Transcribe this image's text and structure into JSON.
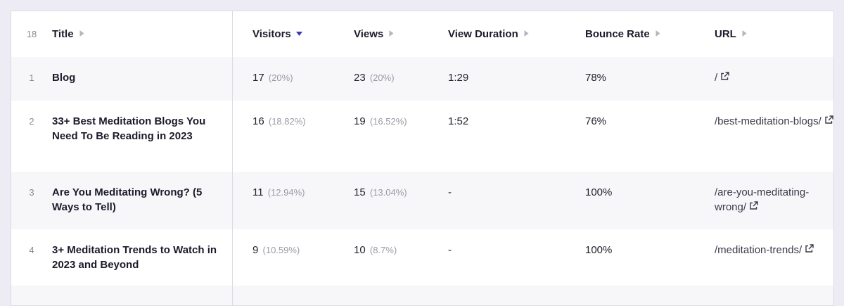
{
  "table": {
    "count": 18,
    "columns": [
      "Title",
      "Visitors",
      "Views",
      "View Duration",
      "Bounce Rate",
      "URL"
    ],
    "sort_column": 1,
    "rows": [
      {
        "number": 1,
        "title": "Blog",
        "visitors": 17,
        "visitors_share": "(20%)",
        "views": 23,
        "views_share": "(20%)",
        "view_duration": "1:29",
        "bounce_rate": "78%",
        "url": "/"
      },
      {
        "number": 2,
        "title": "33+ Best Meditation Blogs You Need To Be Reading in 2023",
        "visitors": 16,
        "visitors_share": "(18.82%)",
        "views": 19,
        "views_share": "(16.52%)",
        "view_duration": "1:52",
        "bounce_rate": "76%",
        "url": "/best-meditation-blogs/"
      },
      {
        "number": 3,
        "title": "Are You Meditating Wrong? (5 Ways to Tell)",
        "visitors": 11,
        "visitors_share": "(12.94%)",
        "views": 15,
        "views_share": "(13.04%)",
        "view_duration": "-",
        "bounce_rate": "100%",
        "url": "/are-you-meditating-wrong/"
      },
      {
        "number": 4,
        "title": "3+ Meditation Trends to Watch in 2023 and Beyond",
        "visitors": 9,
        "visitors_share": "(10.59%)",
        "views": 10,
        "views_share": "(8.7%)",
        "view_duration": "-",
        "bounce_rate": "100%",
        "url": "/meditation-trends/"
      }
    ]
  }
}
